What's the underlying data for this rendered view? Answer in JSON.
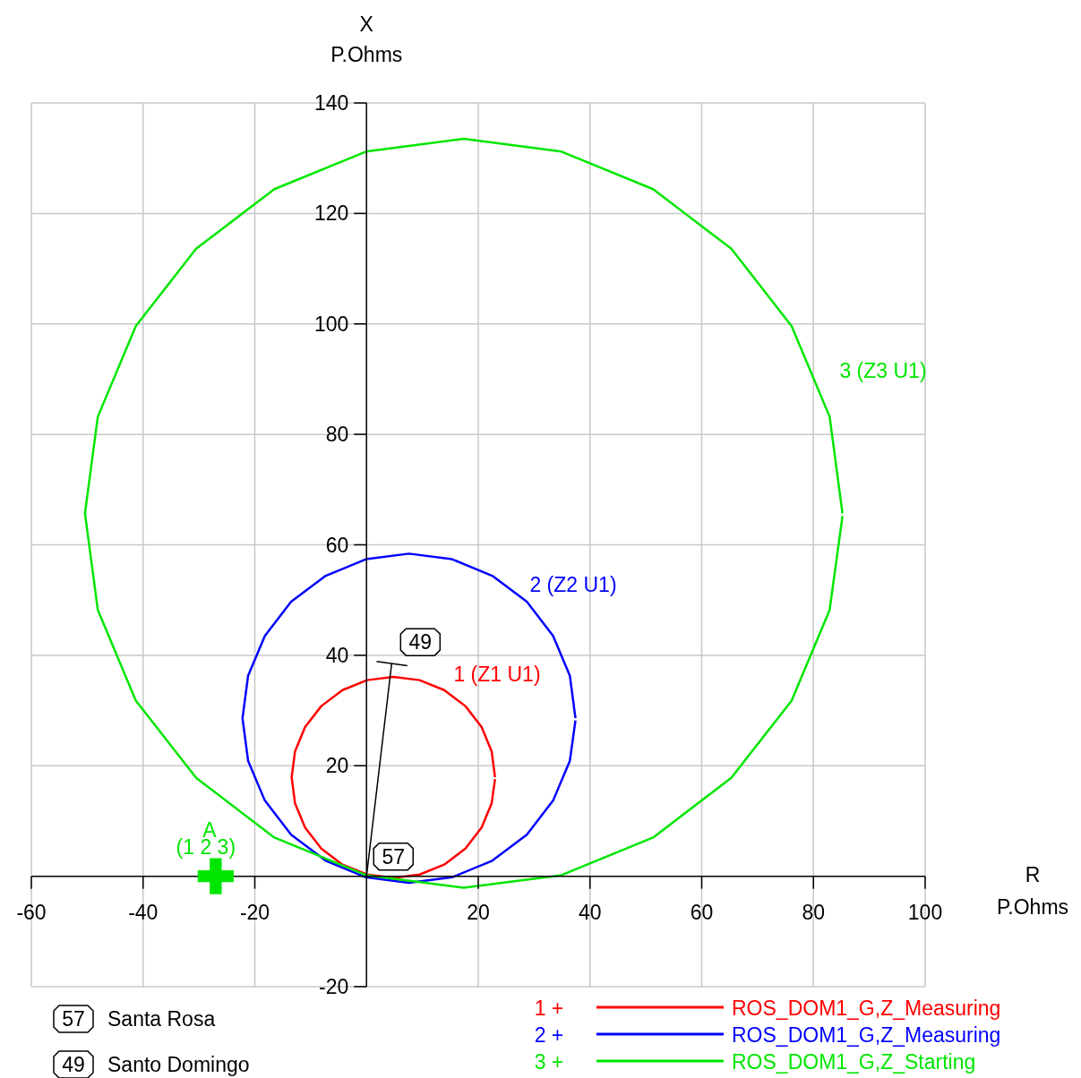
{
  "chart_data": {
    "type": "line",
    "xlabel": "R\nP.Ohms",
    "ylabel": "X\nP.Ohms",
    "xlim": [
      -60,
      100
    ],
    "xticks": [
      -60,
      -40,
      -20,
      20,
      40,
      60,
      80,
      100
    ],
    "ylim": [
      -20,
      140
    ],
    "yticks": [
      -20,
      20,
      40,
      60,
      80,
      100,
      120,
      140
    ],
    "grid": true,
    "legend": "bottom right",
    "marker": "none",
    "line_style": "solid",
    "series": [
      {
        "name": "ROS_DOM1_G,Z_Measuring",
        "color": "#ff0000",
        "x": [
          23.0,
          22.4,
          20.6,
          17.7,
          13.9,
          9.5,
          4.8,
          0.1,
          -4.3,
          -8.1,
          -11.0,
          -12.8,
          -13.4,
          -12.8,
          -11.0,
          -8.1,
          -4.3,
          0.1,
          4.8,
          9.5,
          13.9,
          17.7,
          20.6,
          22.4,
          23.0
        ],
        "values": [
          17.9,
          22.6,
          27.0,
          30.8,
          33.7,
          35.5,
          36.1,
          35.5,
          33.7,
          30.8,
          27.0,
          22.6,
          17.9,
          13.2,
          8.8,
          5.0,
          2.1,
          0.3,
          -0.3,
          0.3,
          2.1,
          5.0,
          8.8,
          13.2,
          17.6
        ]
      },
      {
        "name": "ROS_DOM1_G,Z_Measuring",
        "color": "#0000ff",
        "x": [
          37.4,
          36.4,
          33.4,
          28.7,
          22.5,
          15.3,
          7.6,
          -0.1,
          -7.3,
          -13.5,
          -18.2,
          -21.2,
          -22.2,
          -21.2,
          -18.2,
          -13.5,
          -7.3,
          -0.1,
          7.6,
          15.3,
          22.5,
          28.7,
          33.4,
          36.4,
          37.4
        ],
        "values": [
          28.6,
          36.3,
          43.5,
          49.7,
          54.4,
          57.4,
          58.4,
          57.4,
          54.4,
          49.7,
          43.5,
          36.3,
          28.6,
          20.9,
          13.7,
          7.5,
          2.8,
          -0.2,
          -1.2,
          -0.2,
          2.8,
          7.5,
          13.7,
          20.9,
          28.2
        ]
      },
      {
        "name": "ROS_DOM1_G,Z_Starting",
        "color": "#00e600",
        "x": [
          85.2,
          82.9,
          76.1,
          65.3,
          51.3,
          34.9,
          17.4,
          -0.1,
          -16.5,
          -30.5,
          -41.3,
          -48.1,
          -50.4,
          -48.1,
          -41.3,
          -30.5,
          -16.5,
          -0.1,
          17.4,
          34.9,
          51.3,
          65.3,
          76.1,
          82.9,
          85.2
        ],
        "values": [
          65.7,
          83.2,
          99.6,
          113.6,
          124.4,
          131.2,
          133.5,
          131.2,
          124.4,
          113.6,
          99.6,
          83.2,
          65.7,
          48.2,
          31.8,
          17.8,
          7.0,
          0.2,
          -2.1,
          0.2,
          7.0,
          17.8,
          31.8,
          48.2,
          65.2
        ]
      },
      {
        "color": "#000000",
        "x": [
          0,
          4.5
        ],
        "values": [
          0,
          38.5
        ]
      },
      {
        "color": "#000000",
        "x": [
          1.8,
          7.3
        ],
        "values": [
          38.9,
          38.1
        ]
      },
      {
        "type": "scatter",
        "marker": "cross",
        "color": "#00e600",
        "x": [
          -27
        ],
        "values": [
          0
        ]
      }
    ],
    "annotations": [
      "1 (Z1 U1)",
      "2 (Z2 U1)",
      "3 (Z3 U1)",
      {
        "text": "A",
        "x": -27,
        "y": 0
      },
      {
        "text": "(1 2 3)",
        "x": -27,
        "y": 0
      },
      {
        "text": "57",
        "x": 0,
        "y": 0
      },
      {
        "text": "49",
        "x": 4.5,
        "y": 38.5
      },
      "1 +",
      "2 +",
      "3 +",
      "Santa Rosa",
      "Santo Domingo"
    ]
  }
}
